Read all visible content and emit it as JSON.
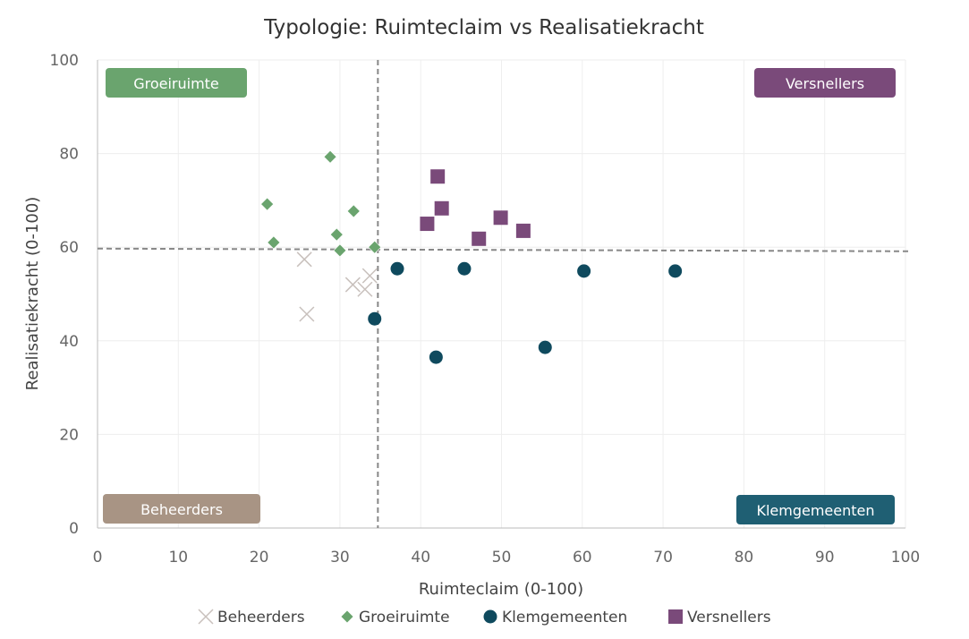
{
  "chart_data": {
    "type": "scatter",
    "title": "Typologie: Ruimteclaim vs Realisatiekracht",
    "xlabel": "Ruimteclaim (0-100)",
    "ylabel": "Realisatiekracht (0-100)",
    "xlim": [
      0,
      100
    ],
    "ylim": [
      0,
      100
    ],
    "xticks": [
      "0",
      "10",
      "20",
      "30",
      "40",
      "50",
      "60",
      "70",
      "80",
      "90",
      "100"
    ],
    "yticks": [
      "0",
      "20",
      "40",
      "60",
      "80",
      "100"
    ],
    "grid": true,
    "legend": "bottom",
    "thresholds": {
      "x": 34.7,
      "y": 59.7
    },
    "quadrant_labels": [
      {
        "text": "Groeiruimte",
        "position": "top-left",
        "color": "#6aa46e"
      },
      {
        "text": "Versnellers",
        "position": "top-right",
        "color": "#7a4a7a"
      },
      {
        "text": "Beheerders",
        "position": "bottom-left",
        "color": "#a89484"
      },
      {
        "text": "Klemgemeenten",
        "position": "bottom-right",
        "color": "#1f5f73"
      }
    ],
    "series": [
      {
        "name": "Beheerders",
        "marker": "x",
        "color": "#c8c0bc",
        "points": [
          [
            25.6,
            57.4
          ],
          [
            25.9,
            45.7
          ],
          [
            31.6,
            52.0
          ],
          [
            33.1,
            51.0
          ],
          [
            33.7,
            53.9
          ]
        ]
      },
      {
        "name": "Groeiruimte",
        "marker": "diamond",
        "color": "#6aa46e",
        "points": [
          [
            28.8,
            79.3
          ],
          [
            21.0,
            69.2
          ],
          [
            31.7,
            67.7
          ],
          [
            21.8,
            61.0
          ],
          [
            29.6,
            62.7
          ],
          [
            30.0,
            59.3
          ],
          [
            34.3,
            60.0
          ]
        ]
      },
      {
        "name": "Klemgemeenten",
        "marker": "circle",
        "color": "#0f4a5e",
        "points": [
          [
            37.1,
            55.4
          ],
          [
            45.4,
            55.4
          ],
          [
            34.3,
            44.7
          ],
          [
            41.9,
            36.5
          ],
          [
            55.4,
            38.6
          ],
          [
            60.2,
            54.9
          ],
          [
            71.5,
            54.9
          ]
        ]
      },
      {
        "name": "Versnellers",
        "marker": "square",
        "color": "#7a4a7a",
        "points": [
          [
            42.1,
            75.1
          ],
          [
            42.6,
            68.3
          ],
          [
            40.8,
            65.0
          ],
          [
            49.9,
            66.3
          ],
          [
            52.7,
            63.5
          ],
          [
            47.2,
            61.8
          ]
        ]
      }
    ]
  }
}
